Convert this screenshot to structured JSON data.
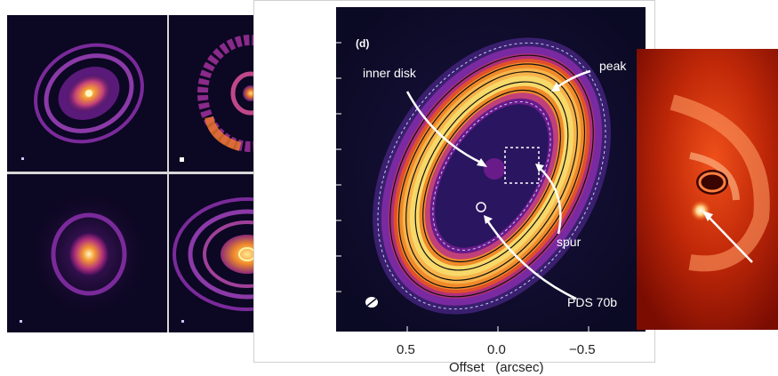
{
  "panel_tag": "(d)",
  "annotations": {
    "inner_disk": "inner disk",
    "peak": "peak",
    "spur": "spur",
    "planet": "PDS 70b"
  },
  "axis": {
    "x_label": "Offset",
    "x_unit": "(arcsec)",
    "ticks": [
      "0.5",
      "0.0",
      "−0.5"
    ]
  },
  "colors": {
    "background_dark": "#0b0a24",
    "disk_orange": "#f08a2a",
    "disk_yellow": "#f7d96a",
    "disk_purple": "#6a1b8a",
    "red_frame": "#8a0d02"
  }
}
